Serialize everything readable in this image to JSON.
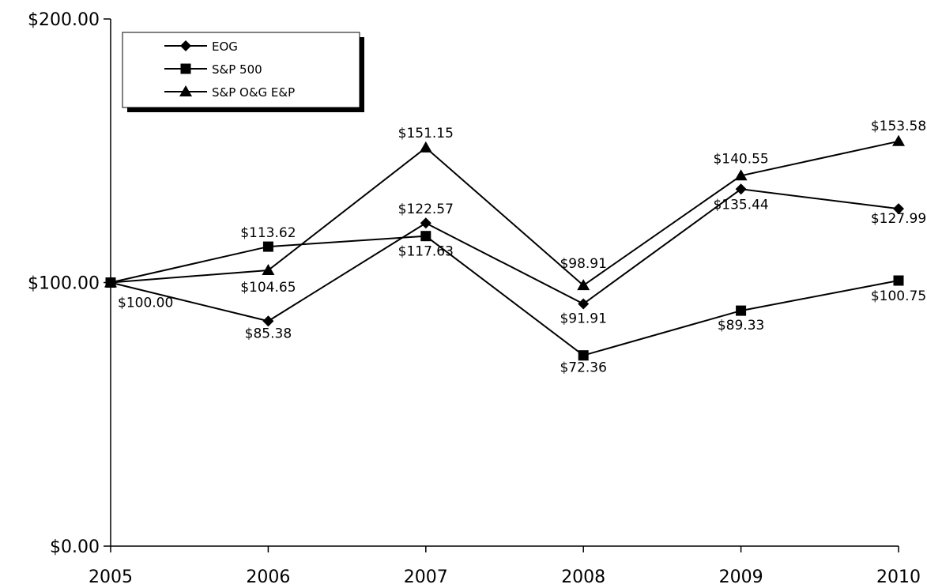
{
  "chart_data": {
    "type": "line",
    "x": [
      "2005",
      "2006",
      "2007",
      "2008",
      "2009",
      "2010"
    ],
    "ylim": [
      0,
      200
    ],
    "yticks": [
      "$0.00",
      "$100.00",
      "$200.00"
    ],
    "yticks_values": [
      0,
      100,
      200
    ],
    "grid": false,
    "legend_position": "top-left",
    "series": [
      {
        "name": "EOG",
        "marker": "diamond",
        "values": [
          100.0,
          85.38,
          122.57,
          91.91,
          135.44,
          127.99
        ],
        "labels": [
          "$100.00",
          "$85.38",
          "$122.57",
          "$91.91",
          "$135.44",
          "$127.99"
        ]
      },
      {
        "name": "S&P 500",
        "marker": "square",
        "values": [
          100.0,
          113.62,
          117.63,
          72.36,
          89.33,
          100.75
        ],
        "labels": [
          "",
          "$113.62",
          "$117.63",
          "$72.36",
          "$89.33",
          "$100.75"
        ]
      },
      {
        "name": "S&P O&G E&P",
        "marker": "triangle",
        "values": [
          100.0,
          104.65,
          151.15,
          98.91,
          140.55,
          153.58
        ],
        "labels": [
          "",
          "$104.65",
          "$151.15",
          "$98.91",
          "$140.55",
          "$153.58"
        ]
      }
    ]
  }
}
